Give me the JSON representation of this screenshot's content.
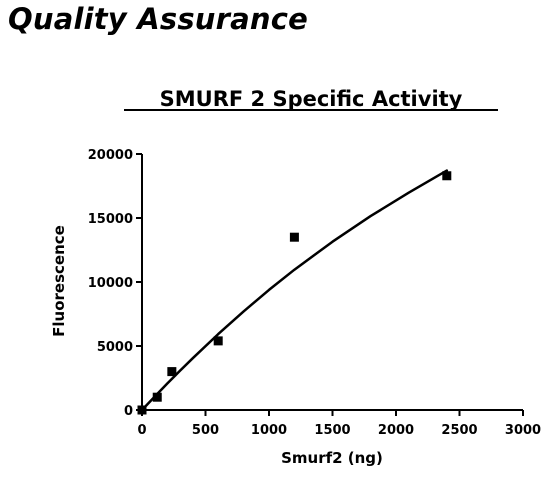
{
  "heading": "Quality Assurance",
  "chart_data": {
    "type": "scatter",
    "title": "SMURF 2 Specific Activity",
    "xlabel": "Smurf2 (ng)",
    "ylabel": "Fluorescence",
    "xlim": [
      0,
      3000
    ],
    "ylim": [
      0,
      20000
    ],
    "x_ticks": [
      0,
      500,
      1000,
      1500,
      2000,
      2500,
      3000
    ],
    "y_ticks": [
      0,
      5000,
      10000,
      15000,
      20000
    ],
    "x_tick_labels": [
      "0",
      "500",
      "1000",
      "1500",
      "2000",
      "2500",
      "3000"
    ],
    "y_tick_labels": [
      "0",
      "5000",
      "10000",
      "15000",
      "20000"
    ],
    "grid": false,
    "series": [
      {
        "points": [
          {
            "x": 0,
            "y": 0
          },
          {
            "x": 120,
            "y": 1000
          },
          {
            "x": 235,
            "y": 3000
          },
          {
            "x": 600,
            "y": 5400
          },
          {
            "x": 1200,
            "y": 13500
          },
          {
            "x": 2400,
            "y": 18300
          }
        ],
        "marker": "square",
        "color": "#000000"
      }
    ],
    "fit_curve": {
      "points": [
        {
          "x": 0,
          "y": 0
        },
        {
          "x": 100,
          "y": 1050
        },
        {
          "x": 200,
          "y": 2080
        },
        {
          "x": 300,
          "y": 3080
        },
        {
          "x": 400,
          "y": 4050
        },
        {
          "x": 600,
          "y": 5930
        },
        {
          "x": 800,
          "y": 7700
        },
        {
          "x": 1000,
          "y": 9380
        },
        {
          "x": 1200,
          "y": 10960
        },
        {
          "x": 1500,
          "y": 13150
        },
        {
          "x": 1800,
          "y": 15150
        },
        {
          "x": 2100,
          "y": 16980
        },
        {
          "x": 2400,
          "y": 18700
        }
      ],
      "color": "#000000"
    }
  }
}
